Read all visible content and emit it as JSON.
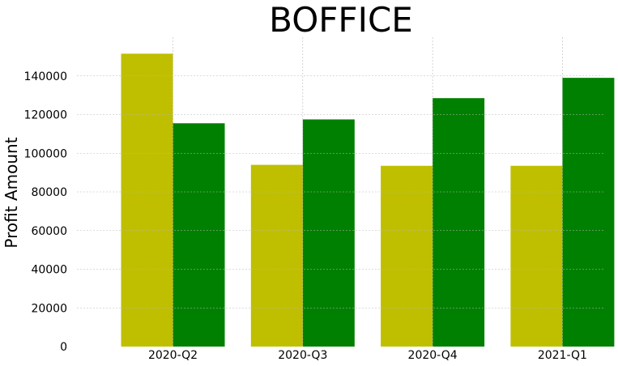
{
  "chart_data": {
    "type": "bar",
    "title": "BOFFICE",
    "xlabel": "",
    "ylabel": "Profit Amount",
    "categories": [
      "2020-Q2",
      "2020-Q3",
      "2020-Q4",
      "2021-Q1"
    ],
    "series": [
      {
        "color": "#bfbf00",
        "values": [
          151500,
          94000,
          93500,
          93500
        ]
      },
      {
        "color": "#008000",
        "values": [
          115500,
          117500,
          128500,
          139000
        ]
      }
    ],
    "ylim": [
      0,
      160000
    ],
    "yticks": [
      0,
      20000,
      40000,
      60000,
      80000,
      100000,
      120000,
      140000
    ],
    "ytick_labels": [
      "0",
      "20000",
      "40000",
      "60000",
      "80000",
      "100000",
      "120000",
      "140000"
    ],
    "grid": true,
    "legend": false
  }
}
